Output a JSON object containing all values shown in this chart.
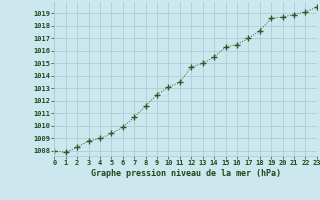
{
  "x": [
    0,
    1,
    2,
    3,
    4,
    5,
    6,
    7,
    8,
    9,
    10,
    11,
    12,
    13,
    14,
    15,
    16,
    17,
    18,
    19,
    20,
    21,
    22,
    23
  ],
  "y": [
    1008.0,
    1007.9,
    1008.3,
    1008.8,
    1009.0,
    1009.4,
    1009.9,
    1010.7,
    1011.6,
    1012.5,
    1013.1,
    1013.5,
    1014.7,
    1015.0,
    1015.5,
    1016.3,
    1016.5,
    1017.0,
    1017.6,
    1018.6,
    1018.7,
    1018.9,
    1019.1,
    1019.5
  ],
  "line_color": "#2d5a2d",
  "marker": "+",
  "marker_size": 4,
  "marker_edge_width": 1.0,
  "line_width": 0.7,
  "bg_color": "#cce8ee",
  "grid_color": "#aacdd4",
  "xlabel": "Graphe pression niveau de la mer (hPa)",
  "xlabel_color": "#1a4a1a",
  "tick_color": "#1a4a1a",
  "ylim": [
    1007.6,
    1019.9
  ],
  "yticks": [
    1008,
    1009,
    1010,
    1011,
    1012,
    1013,
    1014,
    1015,
    1016,
    1017,
    1018,
    1019
  ],
  "xticks": [
    0,
    1,
    2,
    3,
    4,
    5,
    6,
    7,
    8,
    9,
    10,
    11,
    12,
    13,
    14,
    15,
    16,
    17,
    18,
    19,
    20,
    21,
    22,
    23
  ],
  "xlim": [
    0,
    23
  ]
}
